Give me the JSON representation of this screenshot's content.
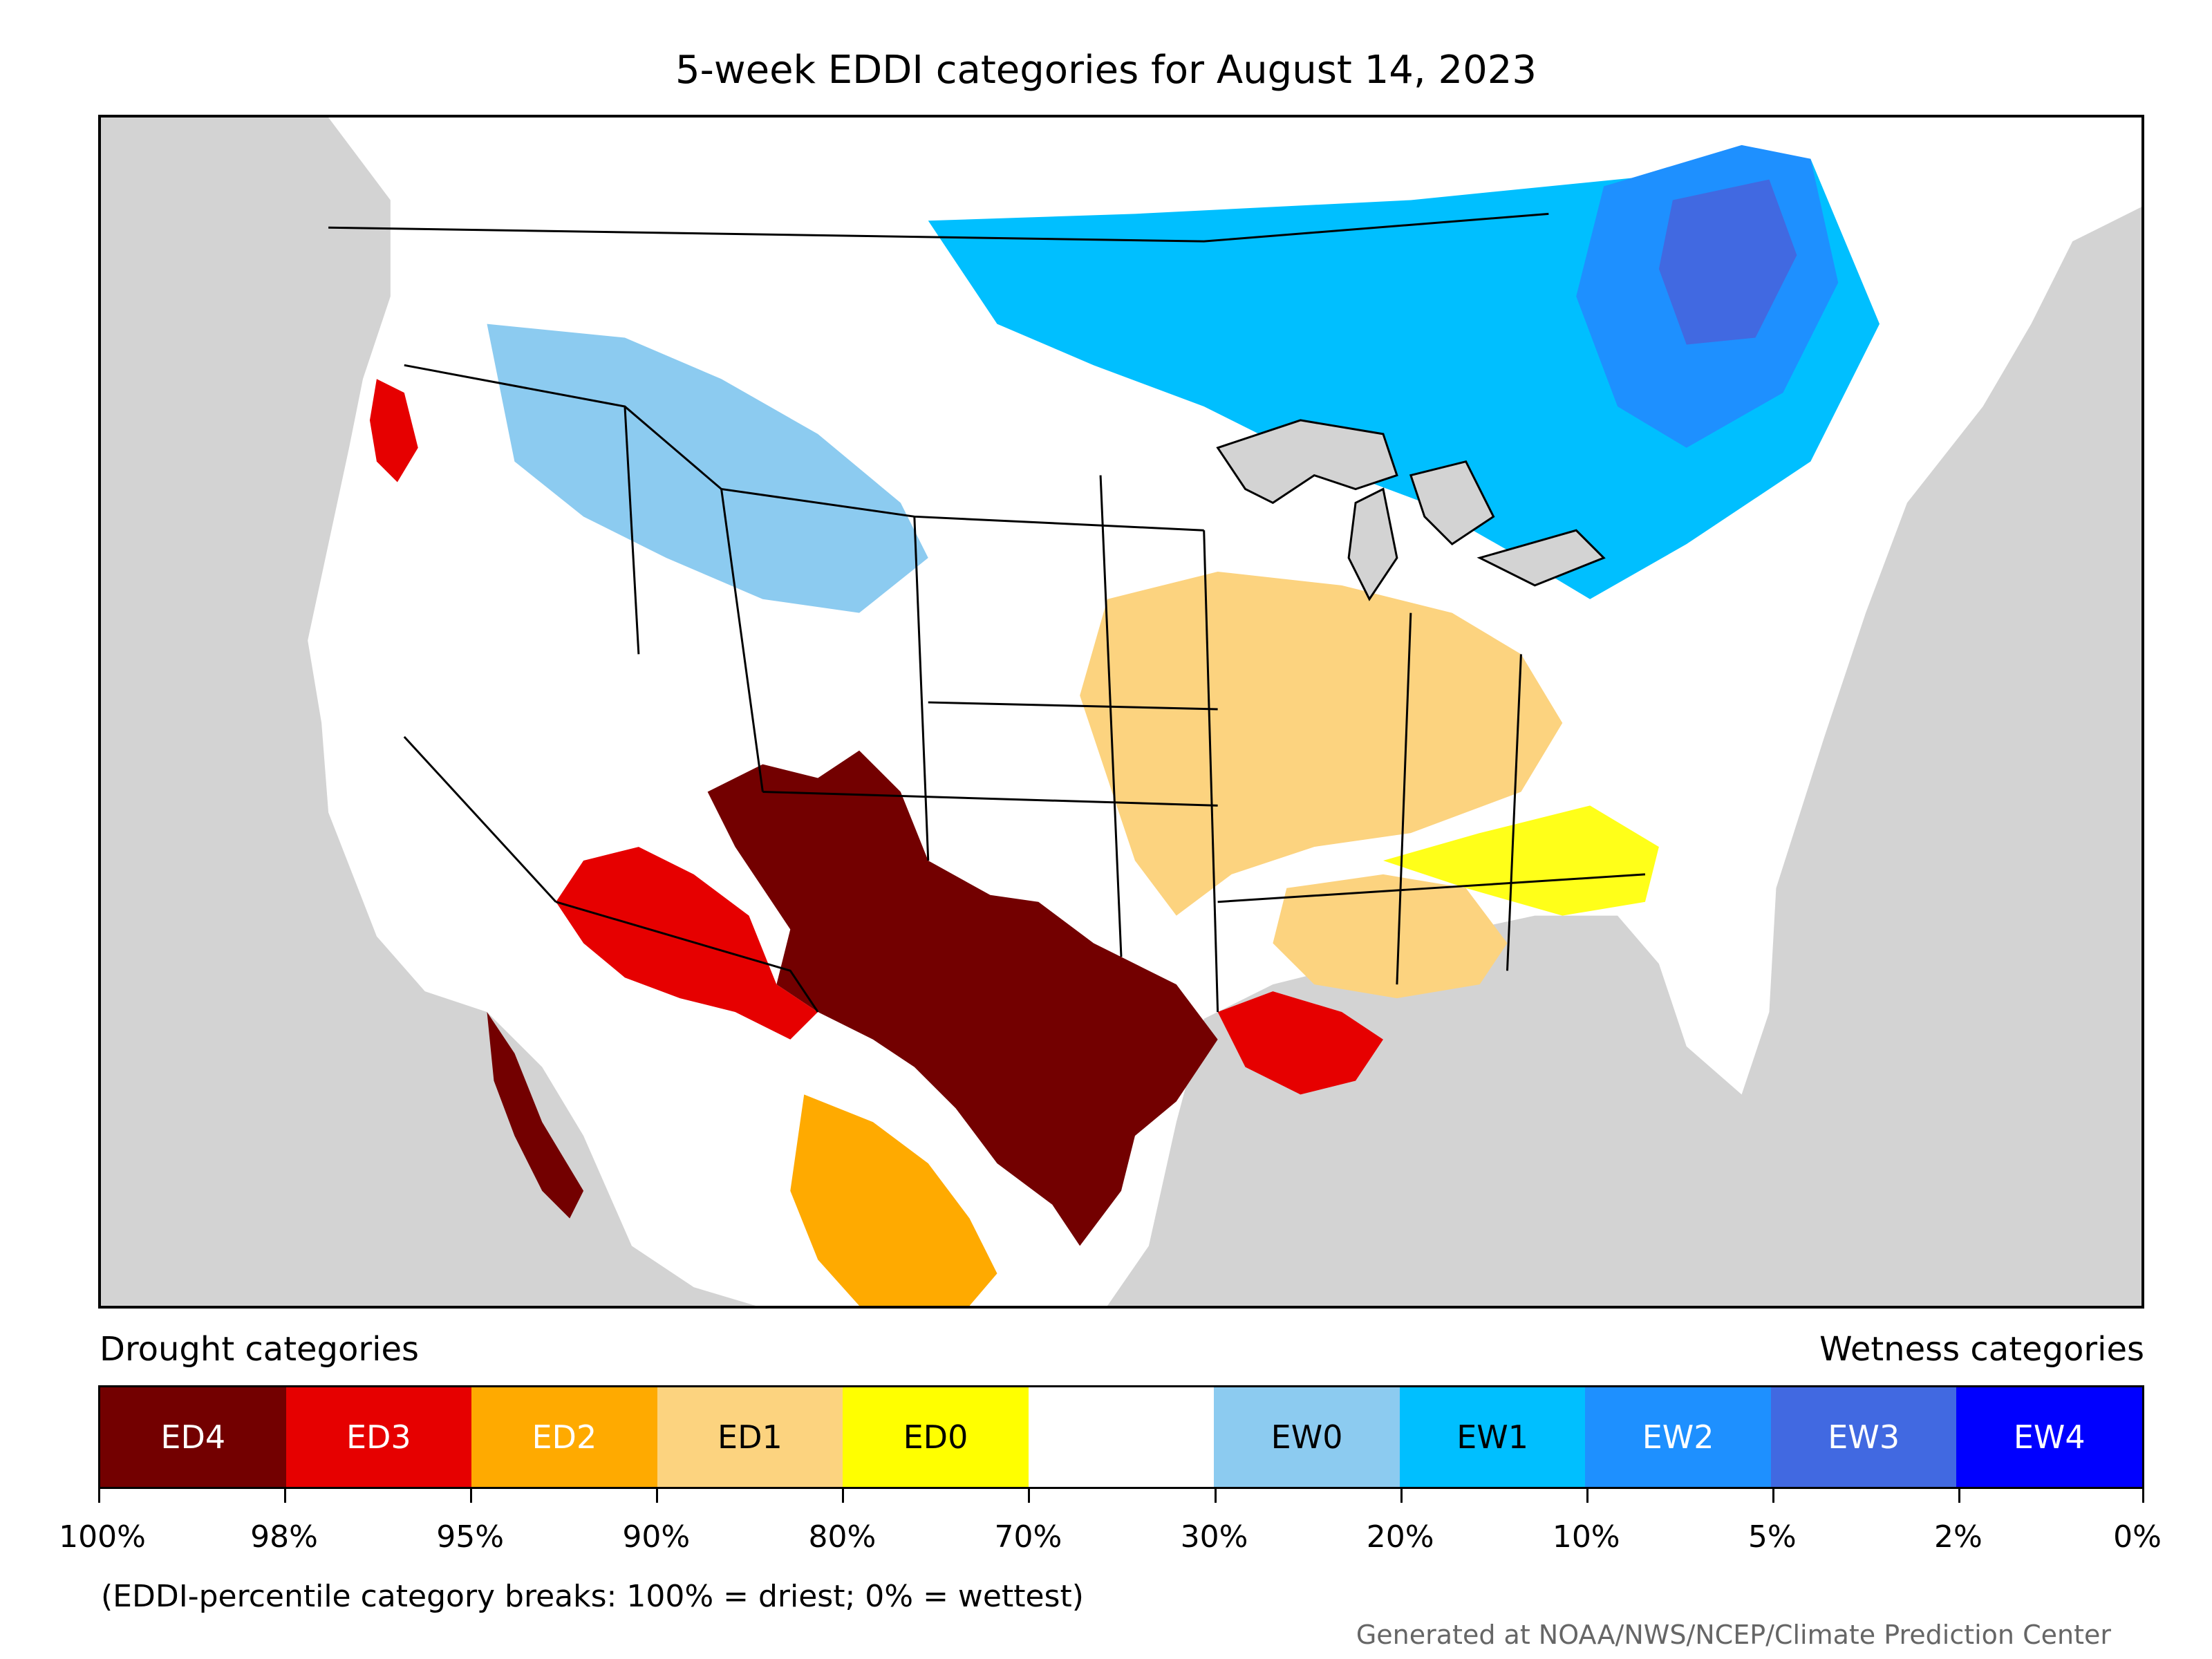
{
  "title": "5-week EDDI categories for August 14, 2023",
  "legend": {
    "drought_heading": "Drought categories",
    "wetness_heading": "Wetness categories",
    "categories": [
      {
        "label": "ED4",
        "color": "#730000"
      },
      {
        "label": "ED3",
        "color": "#e60000"
      },
      {
        "label": "ED2",
        "color": "#ffaa00"
      },
      {
        "label": "ED1",
        "color": "#fcd37f"
      },
      {
        "label": "ED0",
        "color": "#ffff00"
      },
      {
        "label": "",
        "color": "#ffffff"
      },
      {
        "label": "EW0",
        "color": "#8ccbf0"
      },
      {
        "label": "EW1",
        "color": "#00bfff"
      },
      {
        "label": "EW2",
        "color": "#1e90ff"
      },
      {
        "label": "EW3",
        "color": "#4169e1"
      },
      {
        "label": "EW4",
        "color": "#0000ff"
      }
    ],
    "breaks": [
      "100%",
      "98%",
      "95%",
      "90%",
      "80%",
      "70%",
      "30%",
      "20%",
      "10%",
      "5%",
      "2%",
      "0%"
    ]
  },
  "note": "(EDDI-percentile category breaks: 100% = driest; 0% = wettest)",
  "credit": "Generated at NOAA/NWS/NCEP/Climate Prediction Center",
  "map": {
    "ocean_color": "#d3d3d3",
    "land_color": "#ffffff",
    "border_color": "#000000",
    "lake_color": "#d3d3d3"
  }
}
